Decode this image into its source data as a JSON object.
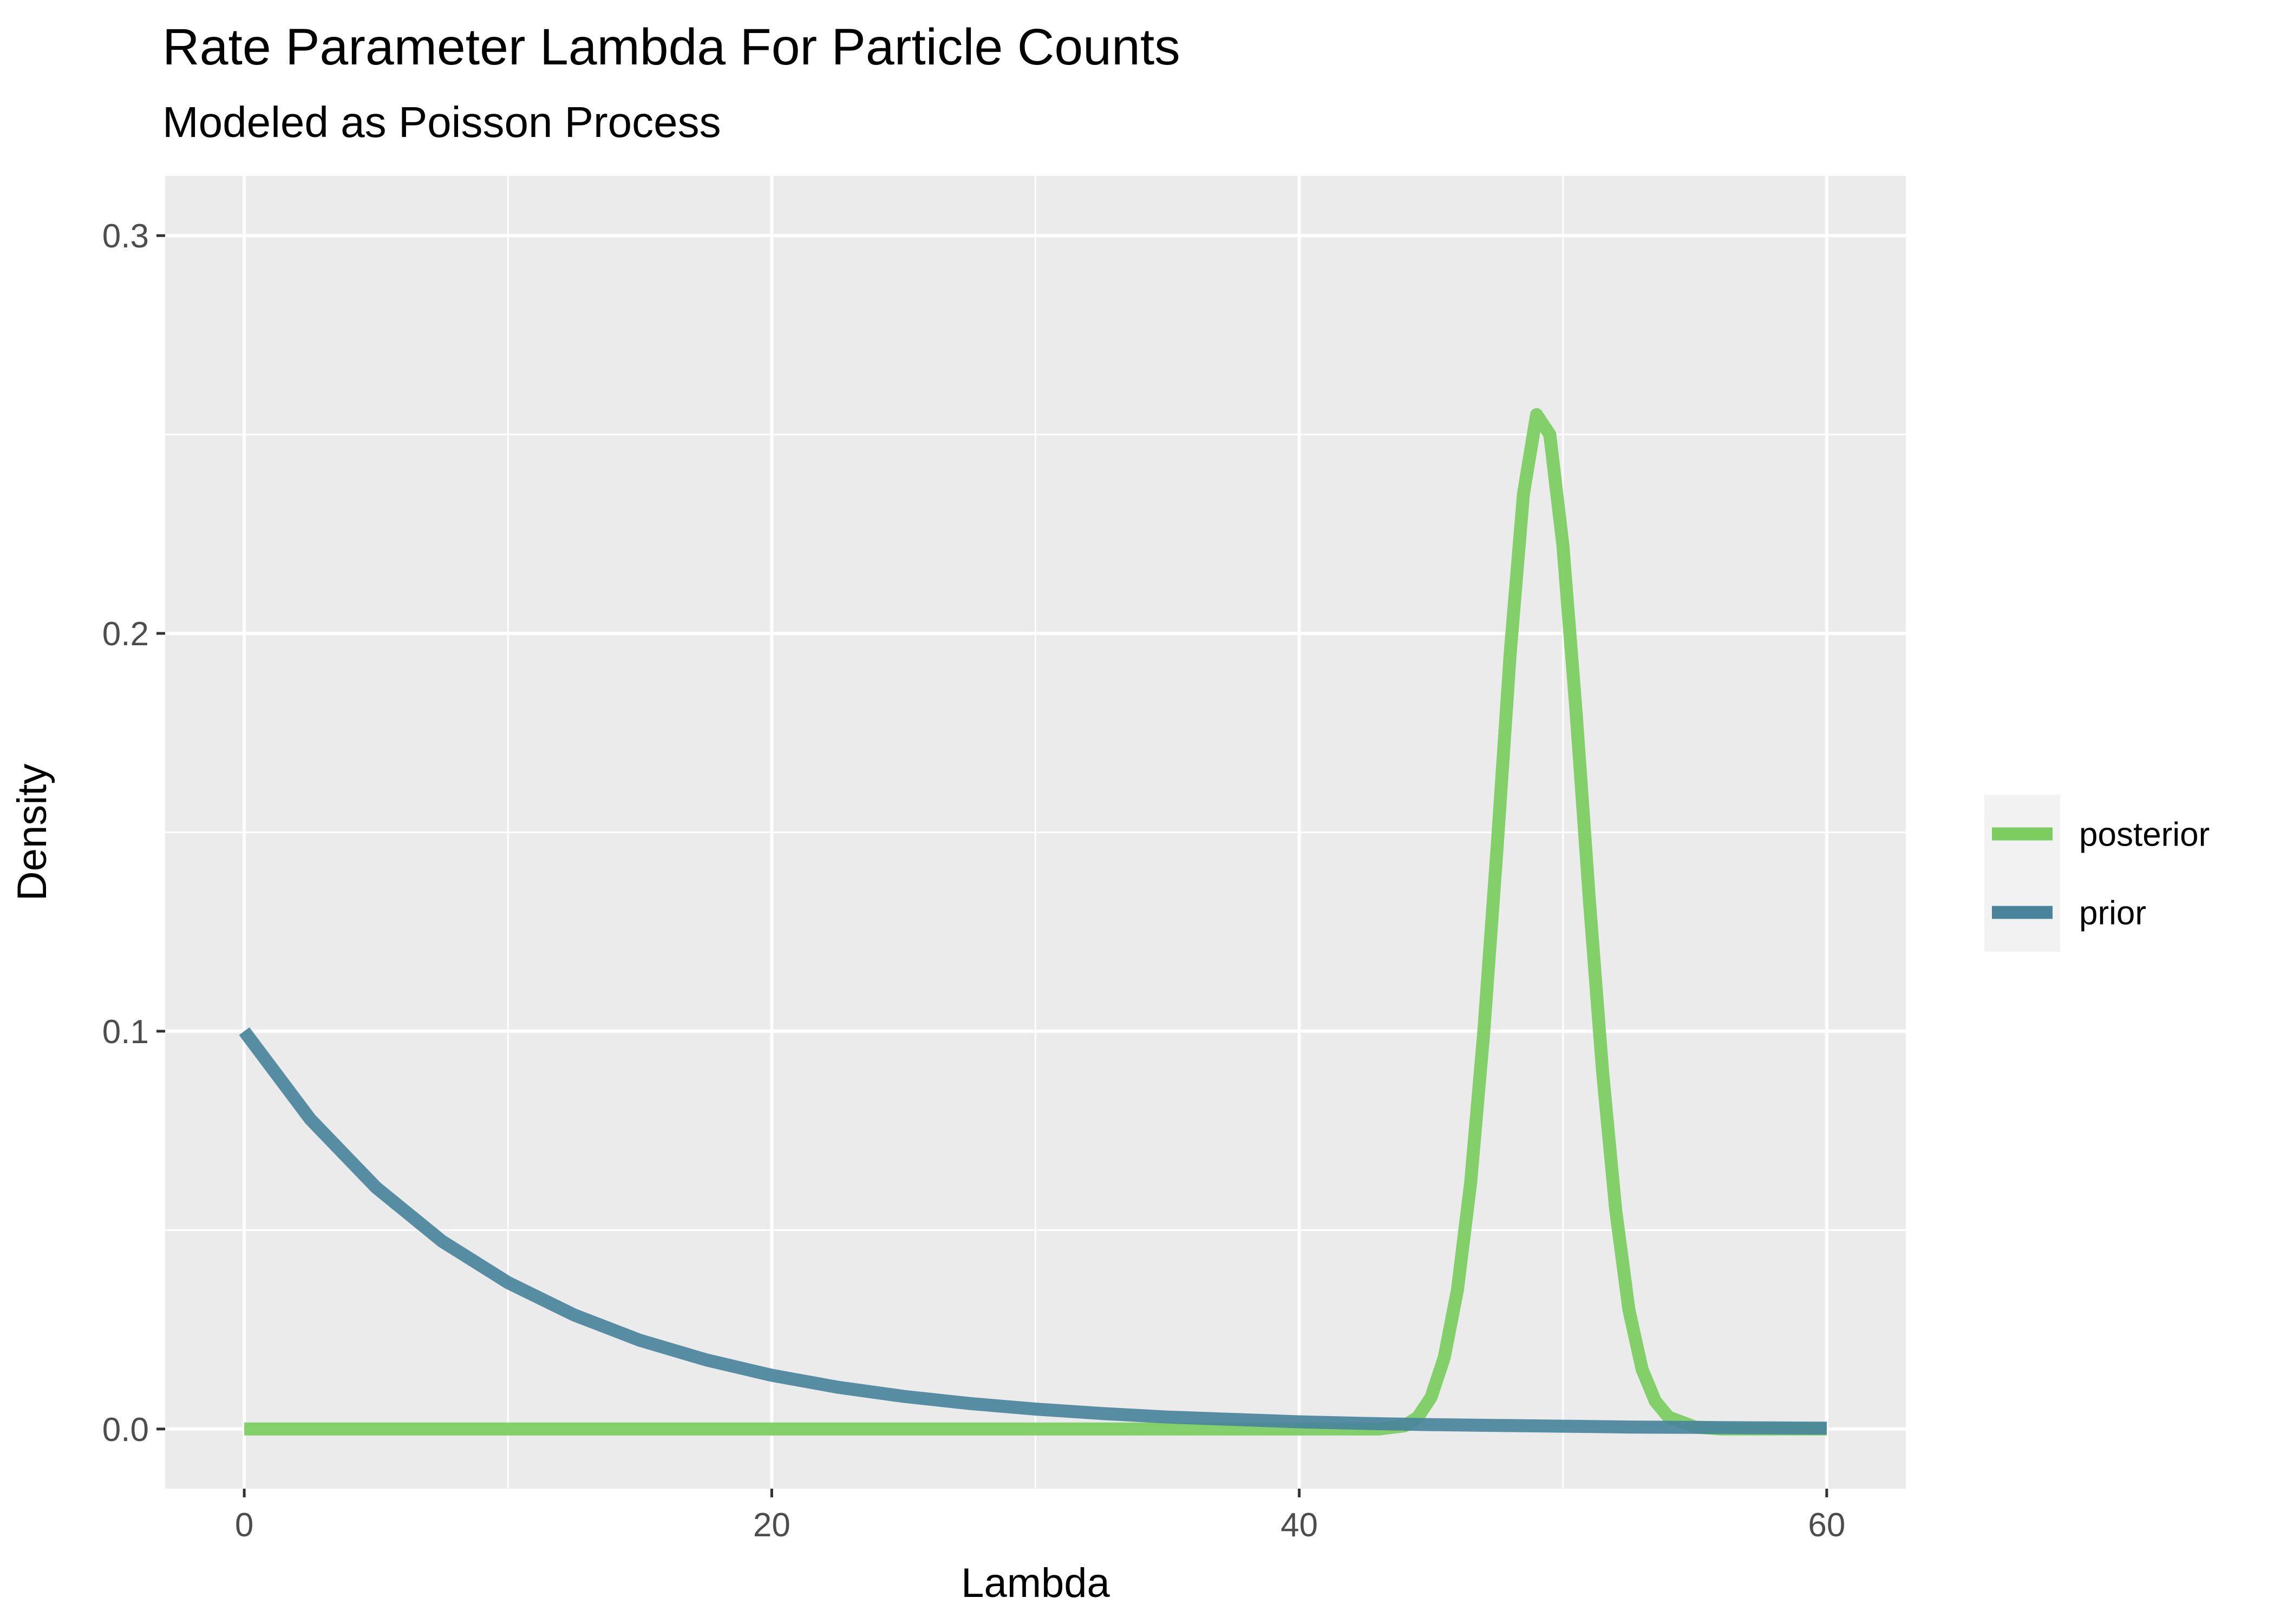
{
  "chart_data": {
    "type": "line",
    "title": "Rate Parameter Lambda For Particle Counts",
    "subtitle": "Modeled as Poisson Process",
    "xlabel": "Lambda",
    "ylabel": "Density",
    "xlim": [
      -3,
      63
    ],
    "ylim": [
      -0.015,
      0.315
    ],
    "x_ticks": [
      0,
      20,
      40,
      60
    ],
    "y_ticks": [
      0.0,
      0.1,
      0.2,
      0.3
    ],
    "x_tick_labels": [
      "0",
      "20",
      "40",
      "60"
    ],
    "y_tick_labels": [
      "0.0",
      "0.1",
      "0.2",
      "0.3"
    ],
    "grid": true,
    "legend_position": "right",
    "series": [
      {
        "name": "posterior",
        "color": "#7ACD5E",
        "points": [
          [
            0,
            0
          ],
          [
            40,
            0
          ],
          [
            43,
            0
          ],
          [
            44,
            0.0008
          ],
          [
            44.5,
            0.003
          ],
          [
            45,
            0.008
          ],
          [
            45.5,
            0.018
          ],
          [
            46,
            0.035
          ],
          [
            46.5,
            0.062
          ],
          [
            47,
            0.1
          ],
          [
            47.5,
            0.146
          ],
          [
            48,
            0.195
          ],
          [
            48.5,
            0.235
          ],
          [
            49,
            0.255
          ],
          [
            49.5,
            0.25
          ],
          [
            50,
            0.222
          ],
          [
            50.5,
            0.18
          ],
          [
            51,
            0.133
          ],
          [
            51.5,
            0.09
          ],
          [
            52,
            0.055
          ],
          [
            52.5,
            0.03
          ],
          [
            53,
            0.015
          ],
          [
            53.5,
            0.007
          ],
          [
            54,
            0.003
          ],
          [
            55,
            0.0005
          ],
          [
            56,
            0
          ],
          [
            60,
            0
          ]
        ]
      },
      {
        "name": "prior",
        "color": "#4A849C",
        "points": [
          [
            0,
            0.1
          ],
          [
            2.5,
            0.0779
          ],
          [
            5,
            0.0607
          ],
          [
            7.5,
            0.0472
          ],
          [
            10,
            0.0368
          ],
          [
            12.5,
            0.0287
          ],
          [
            15,
            0.0223
          ],
          [
            17.5,
            0.0174
          ],
          [
            20,
            0.0135
          ],
          [
            22.5,
            0.0105
          ],
          [
            25,
            0.0082
          ],
          [
            27.5,
            0.0064
          ],
          [
            30,
            0.005
          ],
          [
            32.5,
            0.0039
          ],
          [
            35,
            0.003
          ],
          [
            37.5,
            0.0024
          ],
          [
            40,
            0.0018
          ],
          [
            42.5,
            0.0014
          ],
          [
            45,
            0.0011
          ],
          [
            47.5,
            0.0009
          ],
          [
            50,
            0.0007
          ],
          [
            52.5,
            0.0005
          ],
          [
            55,
            0.0004
          ],
          [
            57.5,
            0.0003
          ],
          [
            60,
            0.0002
          ]
        ]
      }
    ]
  }
}
